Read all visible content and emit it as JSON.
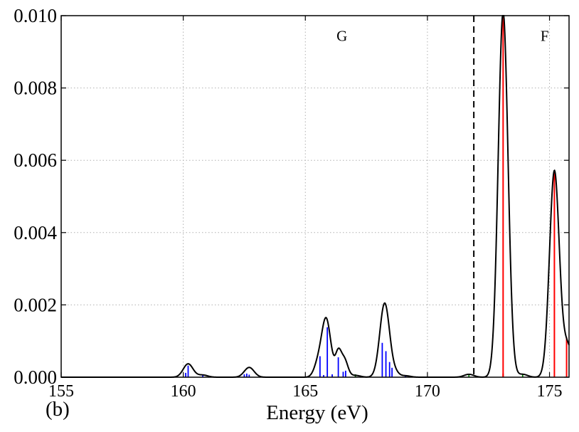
{
  "chart_data": {
    "type": "line",
    "panel_label": "(b)",
    "xlabel": "Energy (eV)",
    "ylabel": "",
    "xlim": [
      155,
      175.8
    ],
    "ylim": [
      0,
      0.01
    ],
    "xticks": [
      "155",
      "160",
      "165",
      "170",
      "175"
    ],
    "yticks": [
      "0.000",
      "0.002",
      "0.004",
      "0.006",
      "0.008",
      "0.010"
    ],
    "grid": true,
    "region_divider_x": 171.9,
    "region_labels": [
      {
        "text": "G",
        "x": 166.5,
        "y": 0.0093
      },
      {
        "text": "F",
        "x": 174.8,
        "y": 0.0093
      }
    ],
    "colors": {
      "envelope": "#000000",
      "G_sticks": "#0000ff",
      "F_sticks": "#ff0000",
      "minor_sticks": "#008000",
      "grid": "#b0b0b0"
    },
    "envelope_peaks": [
      {
        "x": 160.2,
        "height": 0.00037,
        "width": 0.2
      },
      {
        "x": 160.8,
        "height": 6e-05,
        "width": 0.2
      },
      {
        "x": 162.7,
        "height": 0.00027,
        "width": 0.2
      },
      {
        "x": 165.5,
        "height": 0.0003,
        "width": 0.16
      },
      {
        "x": 165.85,
        "height": 0.00162,
        "width": 0.19
      },
      {
        "x": 166.35,
        "height": 0.00065,
        "width": 0.12
      },
      {
        "x": 166.6,
        "height": 0.00048,
        "width": 0.14
      },
      {
        "x": 167.05,
        "height": 5e-05,
        "width": 0.2
      },
      {
        "x": 168.25,
        "height": 0.00205,
        "width": 0.2
      },
      {
        "x": 168.7,
        "height": 0.0001,
        "width": 0.15
      },
      {
        "x": 169.1,
        "height": 4e-05,
        "width": 0.2
      },
      {
        "x": 171.7,
        "height": 8e-05,
        "width": 0.2
      },
      {
        "x": 173.1,
        "height": 0.0101,
        "width": 0.2
      },
      {
        "x": 173.9,
        "height": 8e-05,
        "width": 0.2
      },
      {
        "x": 175.2,
        "height": 0.0057,
        "width": 0.2
      },
      {
        "x": 175.75,
        "height": 0.00085,
        "width": 0.2
      }
    ],
    "sticks": [
      {
        "x": 160.1,
        "value": 0.00012,
        "group": "G"
      },
      {
        "x": 160.2,
        "value": 0.00032,
        "group": "G"
      },
      {
        "x": 160.8,
        "value": 5e-05,
        "group": "G"
      },
      {
        "x": 162.5,
        "value": 8e-05,
        "group": "G"
      },
      {
        "x": 162.6,
        "value": 0.0001,
        "group": "G"
      },
      {
        "x": 162.7,
        "value": 7e-05,
        "group": "G"
      },
      {
        "x": 165.6,
        "value": 0.00058,
        "group": "G"
      },
      {
        "x": 165.75,
        "value": 6e-05,
        "group": "G"
      },
      {
        "x": 165.9,
        "value": 0.00138,
        "group": "G"
      },
      {
        "x": 166.1,
        "value": 8e-05,
        "group": "G"
      },
      {
        "x": 166.35,
        "value": 0.00055,
        "group": "G"
      },
      {
        "x": 166.55,
        "value": 0.00015,
        "group": "G"
      },
      {
        "x": 166.65,
        "value": 0.00018,
        "group": "G"
      },
      {
        "x": 168.15,
        "value": 0.00095,
        "group": "G"
      },
      {
        "x": 168.3,
        "value": 0.00072,
        "group": "G"
      },
      {
        "x": 168.45,
        "value": 0.00042,
        "group": "G"
      },
      {
        "x": 168.55,
        "value": 0.00026,
        "group": "G"
      },
      {
        "x": 169.1,
        "value": 4e-05,
        "group": "G"
      },
      {
        "x": 167.05,
        "value": 8e-05,
        "group": "minor"
      },
      {
        "x": 171.7,
        "value": 8e-05,
        "group": "minor"
      },
      {
        "x": 173.9,
        "value": 8e-05,
        "group": "minor"
      },
      {
        "x": 173.1,
        "value": 0.0001,
        "group": "F"
      },
      {
        "x": 173.1,
        "value": 0.0101,
        "group": "F"
      },
      {
        "x": 175.2,
        "value": 0.0057,
        "group": "F"
      },
      {
        "x": 175.7,
        "value": 0.0011,
        "group": "F"
      }
    ]
  }
}
